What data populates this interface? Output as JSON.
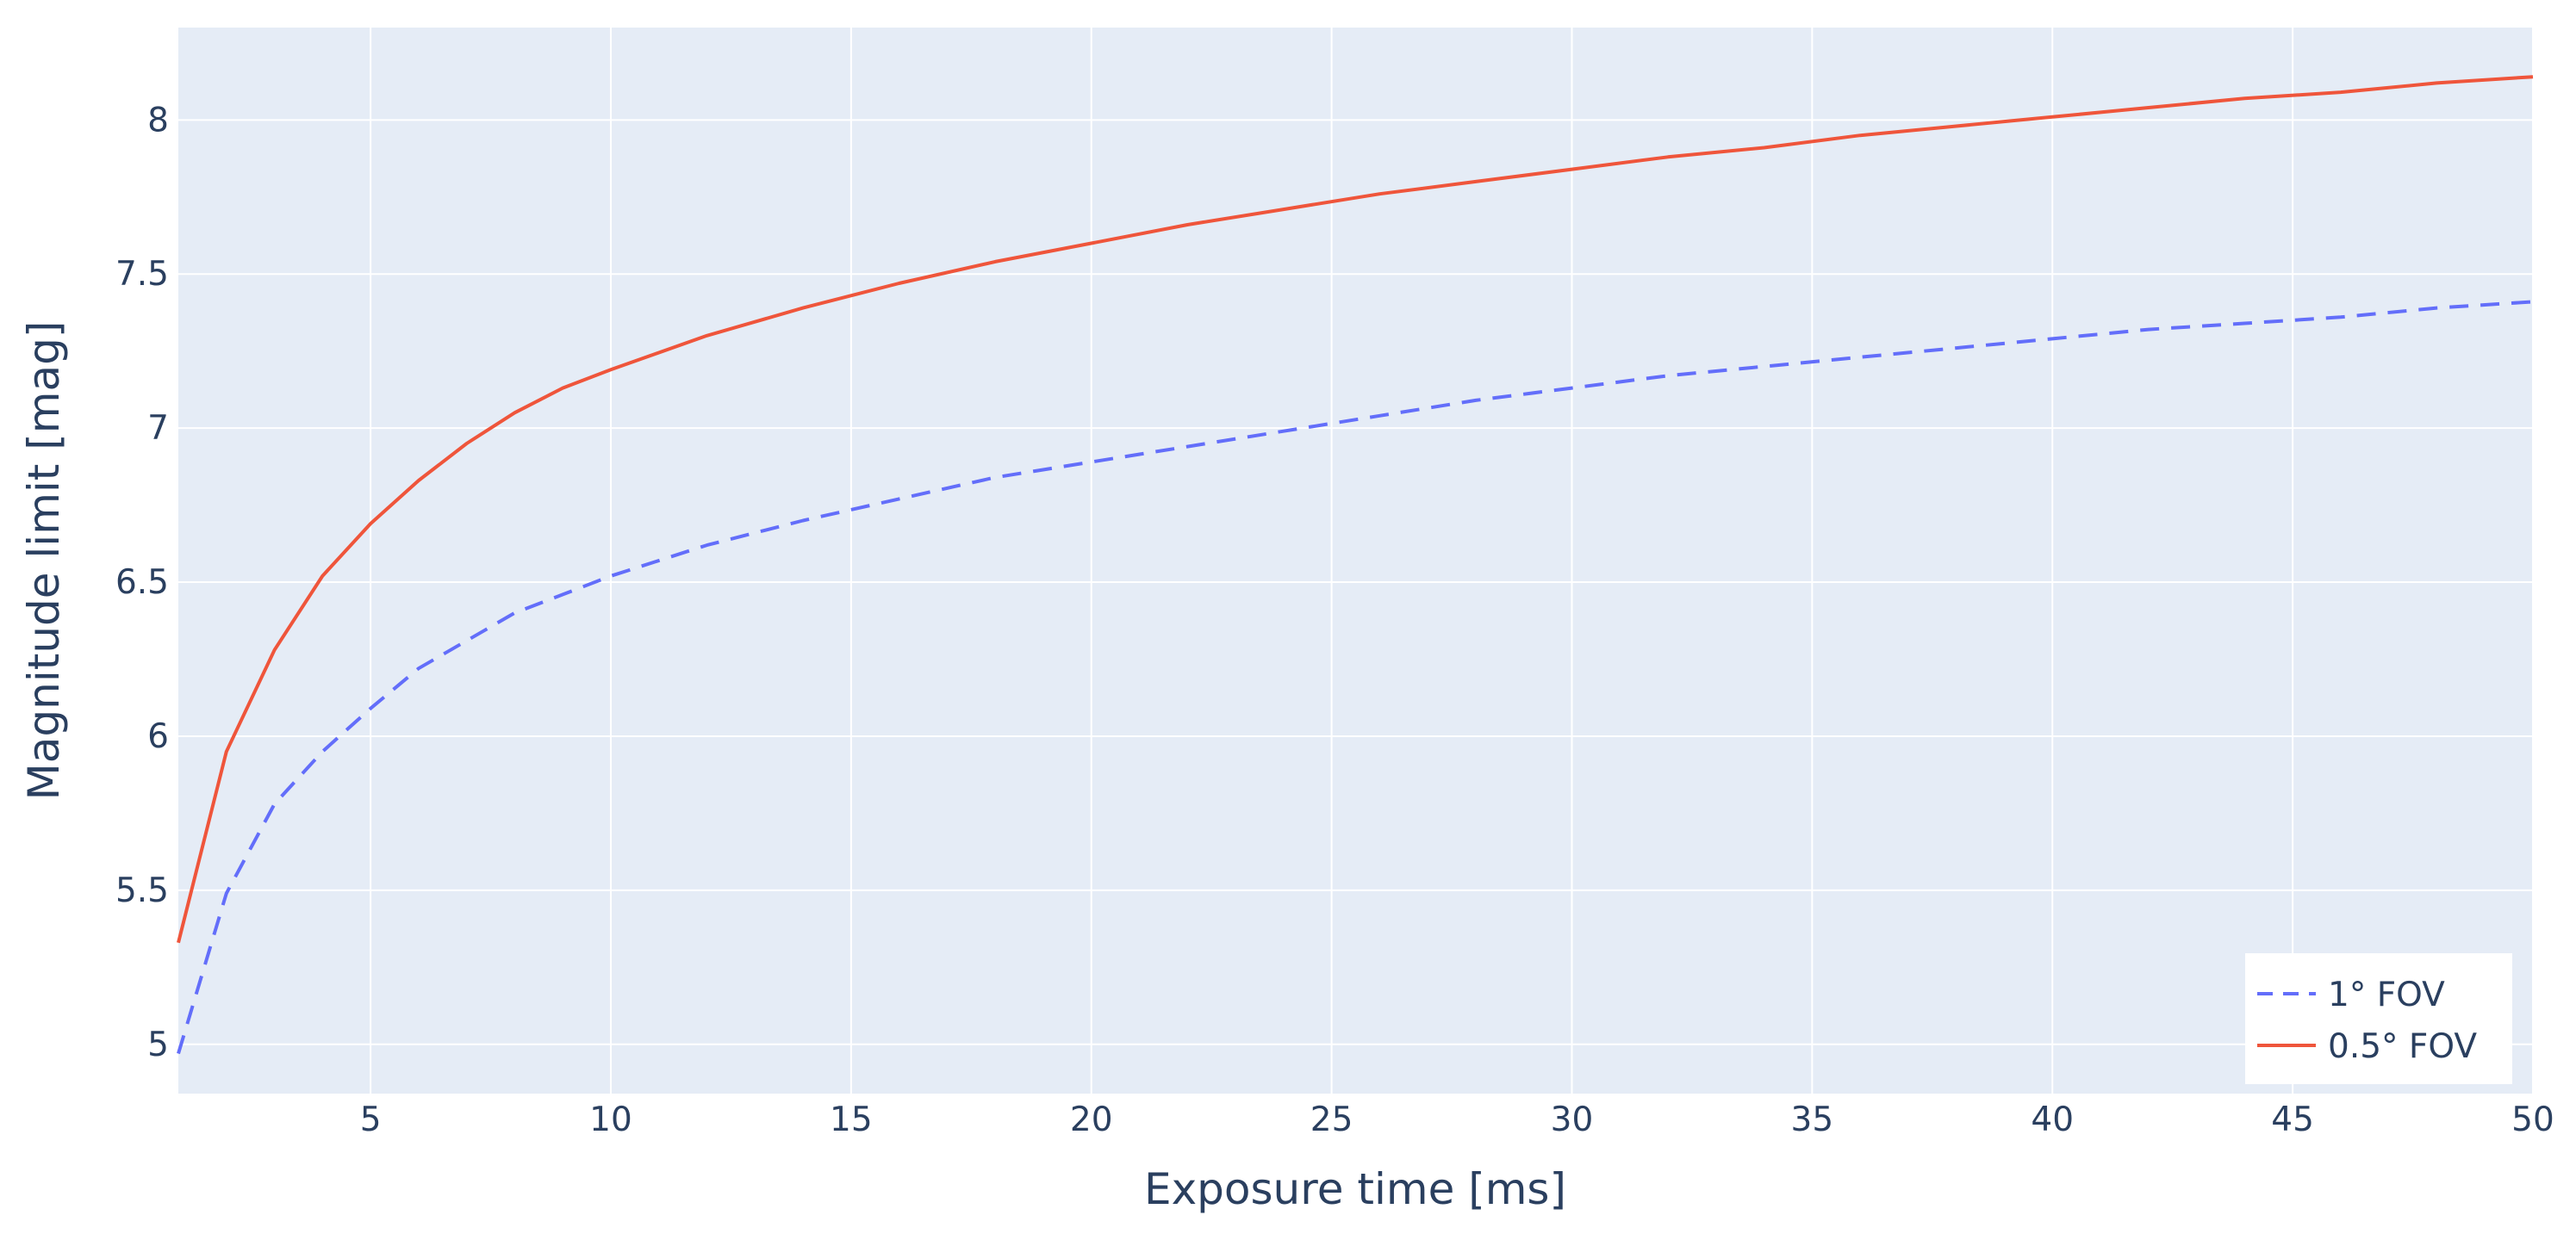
{
  "chart_data": {
    "type": "line",
    "title": "",
    "xlabel": "Exposure time [ms]",
    "ylabel": "Magnitude limit [mag]",
    "xlim": [
      1,
      50
    ],
    "ylim": [
      4.84,
      8.3
    ],
    "x_ticks": [
      5,
      10,
      15,
      20,
      25,
      30,
      35,
      40,
      45,
      50
    ],
    "y_ticks": [
      5,
      5.5,
      6,
      6.5,
      7,
      7.5,
      8
    ],
    "x_tick_labels": [
      "5",
      "10",
      "15",
      "20",
      "25",
      "30",
      "35",
      "40",
      "45",
      "50"
    ],
    "y_tick_labels": [
      "5",
      "5.5",
      "6",
      "6.5",
      "7",
      "7.5",
      "8"
    ],
    "grid": true,
    "background": "#e5ecf6",
    "legend_position": "bottom-right",
    "x": [
      1,
      2,
      3,
      4,
      5,
      6,
      7,
      8,
      9,
      10,
      12,
      14,
      16,
      18,
      20,
      22,
      24,
      26,
      28,
      30,
      32,
      34,
      36,
      38,
      40,
      42,
      44,
      46,
      48,
      50
    ],
    "series": [
      {
        "name": "1° FOV",
        "color": "#636efa",
        "dash": "dash",
        "values": [
          4.97,
          5.49,
          5.78,
          5.95,
          6.09,
          6.22,
          6.31,
          6.4,
          6.46,
          6.52,
          6.62,
          6.7,
          6.77,
          6.84,
          6.89,
          6.94,
          6.99,
          7.04,
          7.09,
          7.13,
          7.17,
          7.2,
          7.23,
          7.26,
          7.29,
          7.32,
          7.34,
          7.36,
          7.39,
          7.41
        ]
      },
      {
        "name": "0.5° FOV",
        "color": "#ef553b",
        "dash": "solid",
        "values": [
          5.33,
          5.95,
          6.28,
          6.52,
          6.69,
          6.83,
          6.95,
          7.05,
          7.13,
          7.19,
          7.3,
          7.39,
          7.47,
          7.54,
          7.6,
          7.66,
          7.71,
          7.76,
          7.8,
          7.84,
          7.88,
          7.91,
          7.95,
          7.98,
          8.01,
          8.04,
          8.07,
          8.09,
          8.12,
          8.14
        ]
      }
    ]
  }
}
